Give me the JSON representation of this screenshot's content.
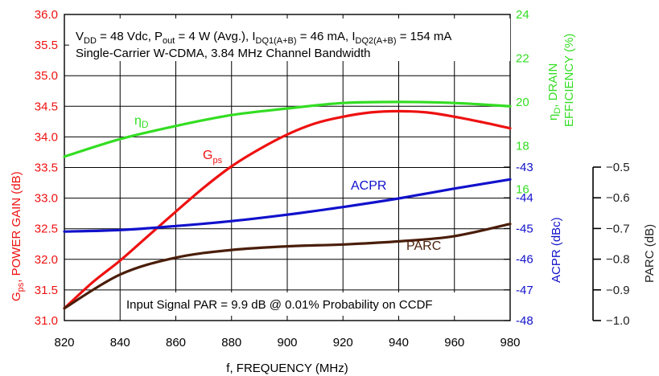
{
  "chart_data": {
    "type": "line",
    "xlabel": "f, FREQUENCY (MHz)",
    "x_ticks": [
      "820",
      "840",
      "860",
      "880",
      "900",
      "920",
      "940",
      "960",
      "980"
    ],
    "xlim": [
      820,
      980
    ],
    "annotations": {
      "conditions_line1": {
        "vdd_main": "V",
        "vdd_sub": "DD",
        "pout_pre": " = 48 Vdc, P",
        "pout_sub": "out",
        "idq1_pre": " = 4 W (Avg.), I",
        "idq1_sub": "DQ1(A+B)",
        "idq2_pre": " = 46 mA, I",
        "idq2_sub": "DQ2(A+B)",
        "tail": " = 154 mA"
      },
      "conditions_line2": "Single-Carrier W-CDMA, 3.84 MHz Channel Bandwidth",
      "input_signal": "Input Signal PAR = 9.9 dB @ 0.01% Probability on CCDF"
    },
    "axes": {
      "gain": {
        "label_main": "G",
        "label_sub": "ps",
        "label_tail": ", POWER GAIN (dB)",
        "color": "#ee1111",
        "ylim": [
          31.0,
          36.0
        ],
        "ticks": [
          "31.0",
          "31.5",
          "32.0",
          "32.5",
          "33.0",
          "33.5",
          "34.0",
          "34.5",
          "35.0",
          "35.5",
          "36.0"
        ]
      },
      "efficiency": {
        "label_line1_main": "η",
        "label_line1_sub": "D",
        "label_line1_tail": ", DRAIN",
        "label_line2": "EFFICIENCY (%)",
        "color": "#33dd22",
        "ylim": [
          10,
          24
        ],
        "ticks": [
          "16",
          "18",
          "20",
          "22",
          "24"
        ]
      },
      "acpr": {
        "label": "ACPR (dBc)",
        "color": "#1111cc",
        "ylim": [
          -48,
          -43
        ],
        "ticks": [
          "-48",
          "-47",
          "-46",
          "-45",
          "-44",
          "-43"
        ]
      },
      "parc": {
        "label": "PARC (dB)",
        "color": "#222222",
        "ylim": [
          -1.0,
          -0.5
        ],
        "ticks": [
          "−1.0",
          "−0.9",
          "−0.8",
          "−0.7",
          "−0.6",
          "−0.5"
        ]
      }
    },
    "series": [
      {
        "name_main": "η",
        "name_sub": "D",
        "axis": "efficiency",
        "color": "#33dd22",
        "x": [
          820,
          840,
          860,
          880,
          900,
          920,
          940,
          960,
          980
        ],
        "values": [
          17.5,
          18.3,
          18.9,
          19.4,
          19.7,
          19.95,
          20.0,
          19.95,
          19.8
        ]
      },
      {
        "name_main": "G",
        "name_sub": "ps",
        "axis": "gain",
        "color": "#ee1111",
        "x": [
          820,
          830,
          840,
          850,
          860,
          870,
          880,
          890,
          900,
          910,
          920,
          930,
          940,
          950,
          960,
          970,
          980
        ],
        "values": [
          31.2,
          31.62,
          31.98,
          32.38,
          32.78,
          33.17,
          33.52,
          33.8,
          34.04,
          34.22,
          34.33,
          34.4,
          34.42,
          34.4,
          34.33,
          34.24,
          34.14
        ]
      },
      {
        "name": "ACPR",
        "axis": "acpr",
        "color": "#1111cc",
        "x": [
          820,
          840,
          860,
          880,
          900,
          920,
          940,
          960,
          980
        ],
        "values": [
          -45.1,
          -45.05,
          -44.92,
          -44.76,
          -44.55,
          -44.3,
          -44.02,
          -43.7,
          -43.4
        ]
      },
      {
        "name": "PARC",
        "axis": "parc",
        "color": "#4a1e0a",
        "x": [
          820,
          840,
          860,
          880,
          900,
          920,
          940,
          960,
          980
        ],
        "values": [
          -0.96,
          -0.85,
          -0.795,
          -0.77,
          -0.758,
          -0.752,
          -0.742,
          -0.725,
          -0.685
        ]
      }
    ]
  }
}
